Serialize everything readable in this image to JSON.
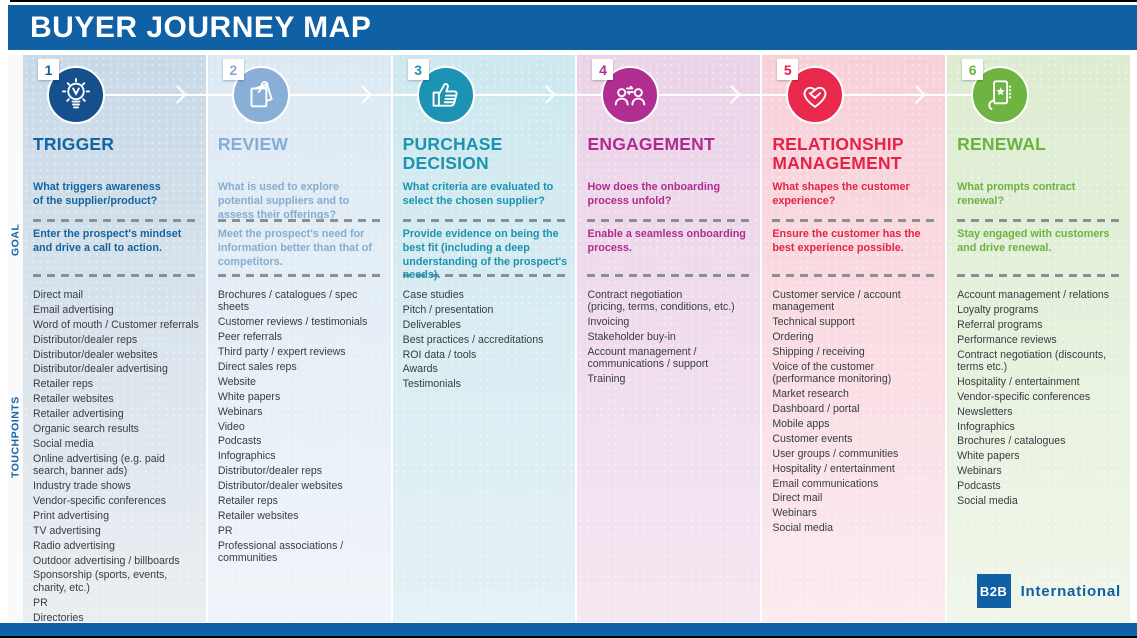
{
  "page_title": "BUYER JOURNEY MAP",
  "colors": {
    "header_bar": "#1060A5",
    "touchpoint_text": "#383D41",
    "dash_gray": "#8B9095"
  },
  "side_labels": {
    "goal": "GOAL",
    "touchpoints": "TOUCHPOINTS"
  },
  "brand": {
    "logo_square": "B2B",
    "logo_text": "International"
  },
  "stages": [
    {
      "number": "1",
      "title": "TRIGGER",
      "icon": "lightbulb-icon",
      "question": "What triggers awareness\nof the supplier/product?",
      "goal": "Enter the prospect's mindset\nand drive a call to action.",
      "colors": {
        "accent": "#1464A0",
        "circle": "#15508C",
        "bg_top": "#C8D9E7",
        "bg_bottom": "#EAEEF1"
      },
      "touchpoints": [
        "Direct mail",
        "Email advertising",
        "Word of mouth / Customer referrals",
        "Distributor/dealer reps",
        "Distributor/dealer websites",
        "Distributor/dealer advertising",
        "Retailer reps",
        "Retailer websites",
        "Retailer advertising",
        "Organic search results",
        "Social media",
        "Online advertising (e.g. paid search, banner ads)",
        "Industry trade shows",
        "Vendor-specific conferences",
        "Print advertising",
        "TV advertising",
        "Radio advertising",
        "Outdoor advertising / billboards",
        "Sponsorship (sports, events, charity, etc.)",
        "PR",
        "Directories"
      ]
    },
    {
      "number": "2",
      "title": "REVIEW",
      "icon": "documents-pin-icon",
      "question": "What is used to explore potential suppliers and to assess their offerings?",
      "goal": "Meet the prospect's need for information better than that of competitors.",
      "colors": {
        "accent": "#85ACD2",
        "circle": "#8AAFD6",
        "bg_top": "#DCE9F3",
        "bg_bottom": "#EFF4F9"
      },
      "touchpoints": [
        "Brochures / catalogues / spec sheets",
        "Customer reviews / testimonials",
        "Peer referrals",
        "Third party / expert reviews",
        "Direct sales reps",
        "Website",
        "White papers",
        "Webinars",
        "Video",
        "Podcasts",
        "Infographics",
        "Distributor/dealer reps",
        "Distributor/dealer websites",
        "Retailer reps",
        "Retailer websites",
        "PR",
        "Professional associations / communities"
      ]
    },
    {
      "number": "3",
      "title": "PURCHASE DECISION",
      "icon": "thumbs-up-icon",
      "question": "What criteria are evaluated to select the chosen supplier?",
      "goal": "Provide evidence on being the best fit (including a deep understanding of the prospect's needs).",
      "colors": {
        "accent": "#1B93B1",
        "circle": "#1C93B2",
        "bg_top": "#CDE8EF",
        "bg_bottom": "#E4F1F5"
      },
      "touchpoints": [
        "Case studies",
        "Pitch / presentation",
        "Deliverables",
        "Best practices / accreditations",
        "ROI data / tools",
        "Awards",
        "Testimonials"
      ]
    },
    {
      "number": "4",
      "title": "ENGAGEMENT",
      "icon": "people-exchange-icon",
      "question": "How does the onboarding process unfold?",
      "goal": "Enable a seamless onboarding process.",
      "colors": {
        "accent": "#AE2C90",
        "circle": "#B02D92",
        "bg_top": "#EBD3E8",
        "bg_bottom": "#F5E6F1"
      },
      "touchpoints": [
        "Contract negotiation\n(pricing, terms, conditions, etc.)",
        "Invoicing",
        "Stakeholder buy-in",
        "Account management /\ncommunications / support",
        "Training"
      ]
    },
    {
      "number": "5",
      "title": "RELATIONSHIP MANAGEMENT",
      "icon": "handshake-heart-icon",
      "question": "What shapes the customer experience?",
      "goal": "Ensure the customer has the best experience possible.",
      "colors": {
        "accent": "#E62245",
        "circle": "#E8294B",
        "bg_top": "#F8D0D9",
        "bg_bottom": "#FBEAEE"
      },
      "touchpoints": [
        "Customer service / account management",
        "Technical support",
        "Ordering",
        "Shipping / receiving",
        "Voice of the customer (performance monitoring)",
        "Market research",
        "Dashboard / portal",
        "Mobile apps",
        "Customer events",
        "User groups / communities",
        "Hospitality / entertainment",
        "Email communications",
        "Direct mail",
        "Webinars",
        "Social media"
      ]
    },
    {
      "number": "6",
      "title": "RENEWAL",
      "icon": "phone-star-icon",
      "question": "What prompts contract renewal?",
      "goal": "Stay engaged with customers and drive renewal.",
      "colors": {
        "accent": "#6CB23F",
        "circle": "#6FB441",
        "bg_top": "#DCECD0",
        "bg_bottom": "#F0F6EA"
      },
      "touchpoints": [
        "Account management / relations",
        "Loyalty programs",
        "Referral programs",
        "Performance reviews",
        "Contract negotiation (discounts, terms etc.)",
        "Hospitality / entertainment",
        "Vendor-specific conferences",
        "Newsletters",
        "Infographics",
        "Brochures / catalogues",
        "White papers",
        "Webinars",
        "Podcasts",
        "Social media"
      ]
    }
  ]
}
